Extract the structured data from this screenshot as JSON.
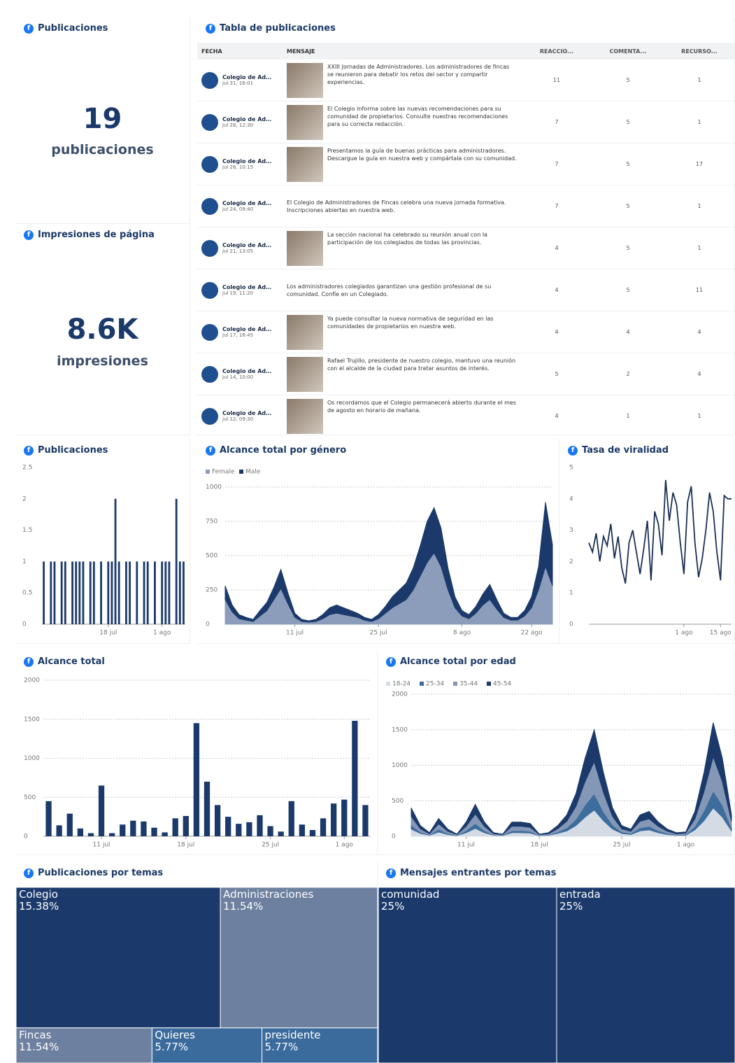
{
  "summary": [
    {
      "title": "Publicaciones",
      "value": 19,
      "unit": "publicaciones"
    },
    {
      "title": "Impresiones de página",
      "value": "8.6K",
      "unit": "impresiones"
    }
  ],
  "table": {
    "title": "Tabla de publicaciones",
    "columns": [
      "FECHA",
      "MENSAJE",
      "REACCIO...",
      "COMENTA...",
      "RECURSO..."
    ],
    "rows": [
      {
        "author": "Colegio de Administrad...",
        "date": "jul 31, 16:01",
        "message": "XXIII Jornadas de Administradores. Los administradores de fincas se reunieron para debatir los retos del sector y compartir experiencias.",
        "reactions": 11,
        "comments": 5,
        "other": 1
      },
      {
        "author": "Colegio de Administrad...",
        "date": "jul 28, 12:30",
        "message": "El Colegio informa sobre las nuevas recomendaciones para su comunidad de propietarios. Consulte nuestras recomendaciones para su correcta redacción.",
        "reactions": 7,
        "comments": 5,
        "other": 1
      },
      {
        "author": "Colegio de Administrad...",
        "date": "jul 26, 10:15",
        "message": "Presentamos la guía de buenas prácticas para administradores. Descargue la guía en nuestra web y compártala con su comunidad.",
        "reactions": 7,
        "comments": 5,
        "other": 17
      },
      {
        "author": "Colegio de Administrad...",
        "date": "jul 24, 09:40",
        "message": "El Colegio de Administradores de Fincas celebra una nueva jornada formativa. Inscripciones abiertas en nuestra web.",
        "reactions": 7,
        "comments": 5,
        "other": 1
      },
      {
        "author": "Colegio de Administrad...",
        "date": "jul 21, 13:05",
        "message": "La sección nacional ha celebrado su reunión anual con la participación de los colegiados de todas las provincias.",
        "reactions": 4,
        "comments": 5,
        "other": 1
      },
      {
        "author": "Colegio de Administrad...",
        "date": "jul 19, 11:20",
        "message": "Los administradores colegiados garantizan una gestión profesional de su comunidad. Confíe en un Colegiado.",
        "reactions": 4,
        "comments": 5,
        "other": 11
      },
      {
        "author": "Colegio de Administrad...",
        "date": "jul 17, 16:45",
        "message": "Ya puede consultar la nueva normativa de seguridad en las comunidades de propietarios en nuestra web.",
        "reactions": 4,
        "comments": 4,
        "other": 4
      },
      {
        "author": "Colegio de Administrad...",
        "date": "jul 14, 10:00",
        "message": "Rafael Trujillo, presidente de nuestro colegio, mantuvo una reunión con el alcalde de la ciudad para tratar asuntos de interés.",
        "reactions": 5,
        "comments": 2,
        "other": 4
      },
      {
        "author": "Colegio de Administrad...",
        "date": "jul 12, 09:30",
        "message": "Os recordamos que el Colegio permanecerá abierto durante el mes de agosto en horario de mañana.",
        "reactions": 4,
        "comments": 1,
        "other": 1
      }
    ]
  },
  "chart_data": [
    {
      "type": "bar",
      "title": "Publicaciones",
      "color": "#1b3a6b",
      "grid": false,
      "categories": [
        null,
        null,
        null,
        null,
        null,
        null,
        null,
        null,
        null,
        null,
        null,
        null,
        null,
        null,
        null,
        null,
        null,
        null,
        "18 jul",
        null,
        null,
        null,
        null,
        null,
        null,
        null,
        null,
        null,
        null,
        null,
        null,
        null,
        null,
        "1 ago",
        null,
        null,
        null,
        null,
        null,
        null
      ],
      "values": [
        1,
        0,
        1,
        1,
        0,
        1,
        1,
        0,
        1,
        1,
        1,
        1,
        0,
        1,
        1,
        0,
        1,
        0,
        1,
        1,
        2,
        1,
        0,
        1,
        1,
        0,
        1,
        0,
        1,
        1,
        0,
        1,
        0,
        1,
        1,
        1,
        0,
        2,
        1,
        1
      ],
      "ylim": [
        0,
        2.5
      ],
      "yticks": [
        0,
        0.5,
        1,
        1.5,
        2,
        2.5
      ]
    },
    {
      "type": "stacked_area",
      "title": "Alcance total por género",
      "grid": true,
      "categories": [
        null,
        null,
        null,
        null,
        null,
        null,
        null,
        null,
        null,
        null,
        "11 jul",
        null,
        null,
        null,
        null,
        null,
        null,
        null,
        null,
        null,
        null,
        null,
        "25 jul",
        null,
        null,
        null,
        null,
        null,
        null,
        null,
        null,
        null,
        null,
        null,
        "8 ago",
        null,
        null,
        null,
        null,
        null,
        null,
        null,
        null,
        null,
        "22 ago",
        null,
        null,
        null
      ],
      "series": [
        {
          "name": "Female",
          "color": "#8c9dbb",
          "values": [
            180,
            90,
            40,
            30,
            20,
            60,
            100,
            180,
            260,
            150,
            50,
            20,
            15,
            20,
            40,
            70,
            80,
            70,
            60,
            50,
            30,
            20,
            40,
            80,
            120,
            150,
            180,
            250,
            350,
            450,
            520,
            420,
            250,
            120,
            60,
            40,
            80,
            140,
            180,
            110,
            50,
            30,
            30,
            60,
            120,
            250,
            420,
            280
          ]
        },
        {
          "name": "Male",
          "color": "#1b3a6b",
          "values": [
            100,
            50,
            30,
            20,
            15,
            40,
            60,
            90,
            140,
            80,
            30,
            15,
            10,
            15,
            30,
            50,
            60,
            50,
            40,
            30,
            20,
            15,
            30,
            50,
            80,
            100,
            120,
            160,
            220,
            300,
            330,
            280,
            160,
            80,
            40,
            30,
            50,
            80,
            110,
            70,
            30,
            20,
            20,
            40,
            80,
            170,
            470,
            300
          ]
        }
      ],
      "ylim": [
        0,
        1000
      ],
      "yticks": [
        0,
        250,
        500,
        750,
        1000
      ]
    },
    {
      "type": "line",
      "title": "Tasa de viralidad",
      "color": "#1b2f55",
      "grid": false,
      "categories": [
        null,
        null,
        null,
        null,
        null,
        null,
        null,
        null,
        null,
        null,
        null,
        null,
        null,
        null,
        null,
        null,
        null,
        null,
        null,
        null,
        null,
        null,
        null,
        null,
        null,
        null,
        "1 ago",
        null,
        null,
        null,
        null,
        null,
        null,
        null,
        null,
        null,
        "15 ago",
        null,
        null,
        null
      ],
      "values": [
        2.6,
        2.3,
        2.9,
        2.0,
        2.8,
        2.5,
        3.2,
        2.1,
        2.8,
        1.8,
        1.3,
        2.6,
        3.0,
        2.3,
        1.6,
        2.4,
        3.3,
        1.4,
        3.6,
        3.2,
        2.2,
        4.6,
        3.3,
        4.2,
        3.8,
        2.6,
        1.6,
        3.9,
        4.4,
        2.6,
        1.5,
        2.1,
        3.0,
        4.2,
        3.6,
        2.3,
        1.4,
        4.1,
        4.0,
        4.0
      ],
      "ylim": [
        0,
        5
      ],
      "yticks": [
        0,
        1,
        2,
        3,
        4,
        5
      ]
    },
    {
      "type": "bar",
      "title": "Alcance total",
      "color": "#1b3a6b",
      "grid": true,
      "categories": [
        null,
        null,
        null,
        null,
        null,
        "11 jul",
        null,
        null,
        null,
        null,
        null,
        null,
        null,
        "18 jul",
        null,
        null,
        null,
        null,
        null,
        null,
        null,
        "25 jul",
        null,
        null,
        null,
        null,
        null,
        null,
        "1 ago",
        null,
        null
      ],
      "values": [
        450,
        140,
        290,
        100,
        40,
        650,
        40,
        150,
        200,
        190,
        110,
        50,
        230,
        260,
        1450,
        700,
        400,
        250,
        160,
        180,
        270,
        130,
        60,
        450,
        150,
        80,
        230,
        420,
        470,
        1480,
        400
      ],
      "ylim": [
        0,
        2000
      ],
      "yticks": [
        0,
        500,
        1000,
        1500,
        2000
      ]
    },
    {
      "type": "stacked_area",
      "title": "Alcance total por edad",
      "grid": true,
      "categories": [
        null,
        null,
        null,
        null,
        null,
        null,
        "11 jul",
        null,
        null,
        null,
        null,
        null,
        null,
        null,
        "18 jul",
        null,
        null,
        null,
        null,
        null,
        null,
        null,
        null,
        "25 jul",
        null,
        null,
        null,
        null,
        null,
        null,
        "1 ago",
        null,
        null,
        null,
        null,
        null
      ],
      "series": [
        {
          "name": "18-24",
          "color": "#d5dbe5",
          "values": [
            100,
            40,
            15,
            60,
            25,
            10,
            50,
            110,
            50,
            15,
            10,
            50,
            50,
            45,
            10,
            15,
            40,
            75,
            150,
            270,
            370,
            220,
            100,
            40,
            25,
            75,
            90,
            50,
            25,
            15,
            15,
            90,
            220,
            400,
            270,
            75
          ]
        },
        {
          "name": "25-34",
          "color": "#3d6d9c",
          "values": [
            60,
            20,
            5,
            40,
            15,
            5,
            30,
            70,
            30,
            5,
            5,
            30,
            30,
            25,
            5,
            5,
            20,
            45,
            90,
            170,
            230,
            130,
            60,
            20,
            15,
            45,
            50,
            30,
            15,
            5,
            10,
            50,
            140,
            240,
            170,
            45
          ]
        },
        {
          "name": "35-44",
          "color": "#8497b6",
          "values": [
            120,
            45,
            15,
            75,
            30,
            10,
            60,
            135,
            60,
            15,
            10,
            60,
            60,
            55,
            10,
            15,
            45,
            90,
            180,
            330,
            450,
            270,
            120,
            45,
            30,
            90,
            105,
            60,
            30,
            15,
            20,
            105,
            270,
            480,
            330,
            90
          ]
        },
        {
          "name": "45-54",
          "color": "#1b3a6b",
          "values": [
            120,
            45,
            15,
            75,
            30,
            5,
            60,
            135,
            60,
            15,
            5,
            60,
            60,
            55,
            5,
            15,
            45,
            90,
            180,
            330,
            450,
            280,
            120,
            45,
            30,
            90,
            105,
            60,
            30,
            15,
            15,
            105,
            270,
            480,
            330,
            90
          ]
        }
      ],
      "ylim": [
        0,
        2000
      ],
      "yticks": [
        0,
        500,
        1000,
        1500,
        2000
      ]
    },
    {
      "type": "treemap",
      "title": "Publicaciones por temas",
      "categories": [
        "Colegio",
        "Administraciones",
        "Fincas",
        "Quieres",
        "presidente"
      ],
      "values": [
        15.38,
        11.54,
        11.54,
        5.77,
        5.77
      ],
      "value_labels": [
        "15.38%",
        "11.54%",
        "11.54%",
        "5.77%",
        "5.77%"
      ],
      "colors": [
        "#1b3a6b",
        "#6d809f",
        "#6d809f",
        "#3b6b9c",
        "#3b6b9c"
      ]
    },
    {
      "type": "treemap",
      "title": "Mensajes entrantes por temas",
      "categories": [
        "comunidad",
        "entrada"
      ],
      "values": [
        25,
        25
      ],
      "value_labels": [
        "25%",
        "25%"
      ],
      "colors": [
        "#1b3a6b",
        "#1b3a6b"
      ]
    }
  ]
}
